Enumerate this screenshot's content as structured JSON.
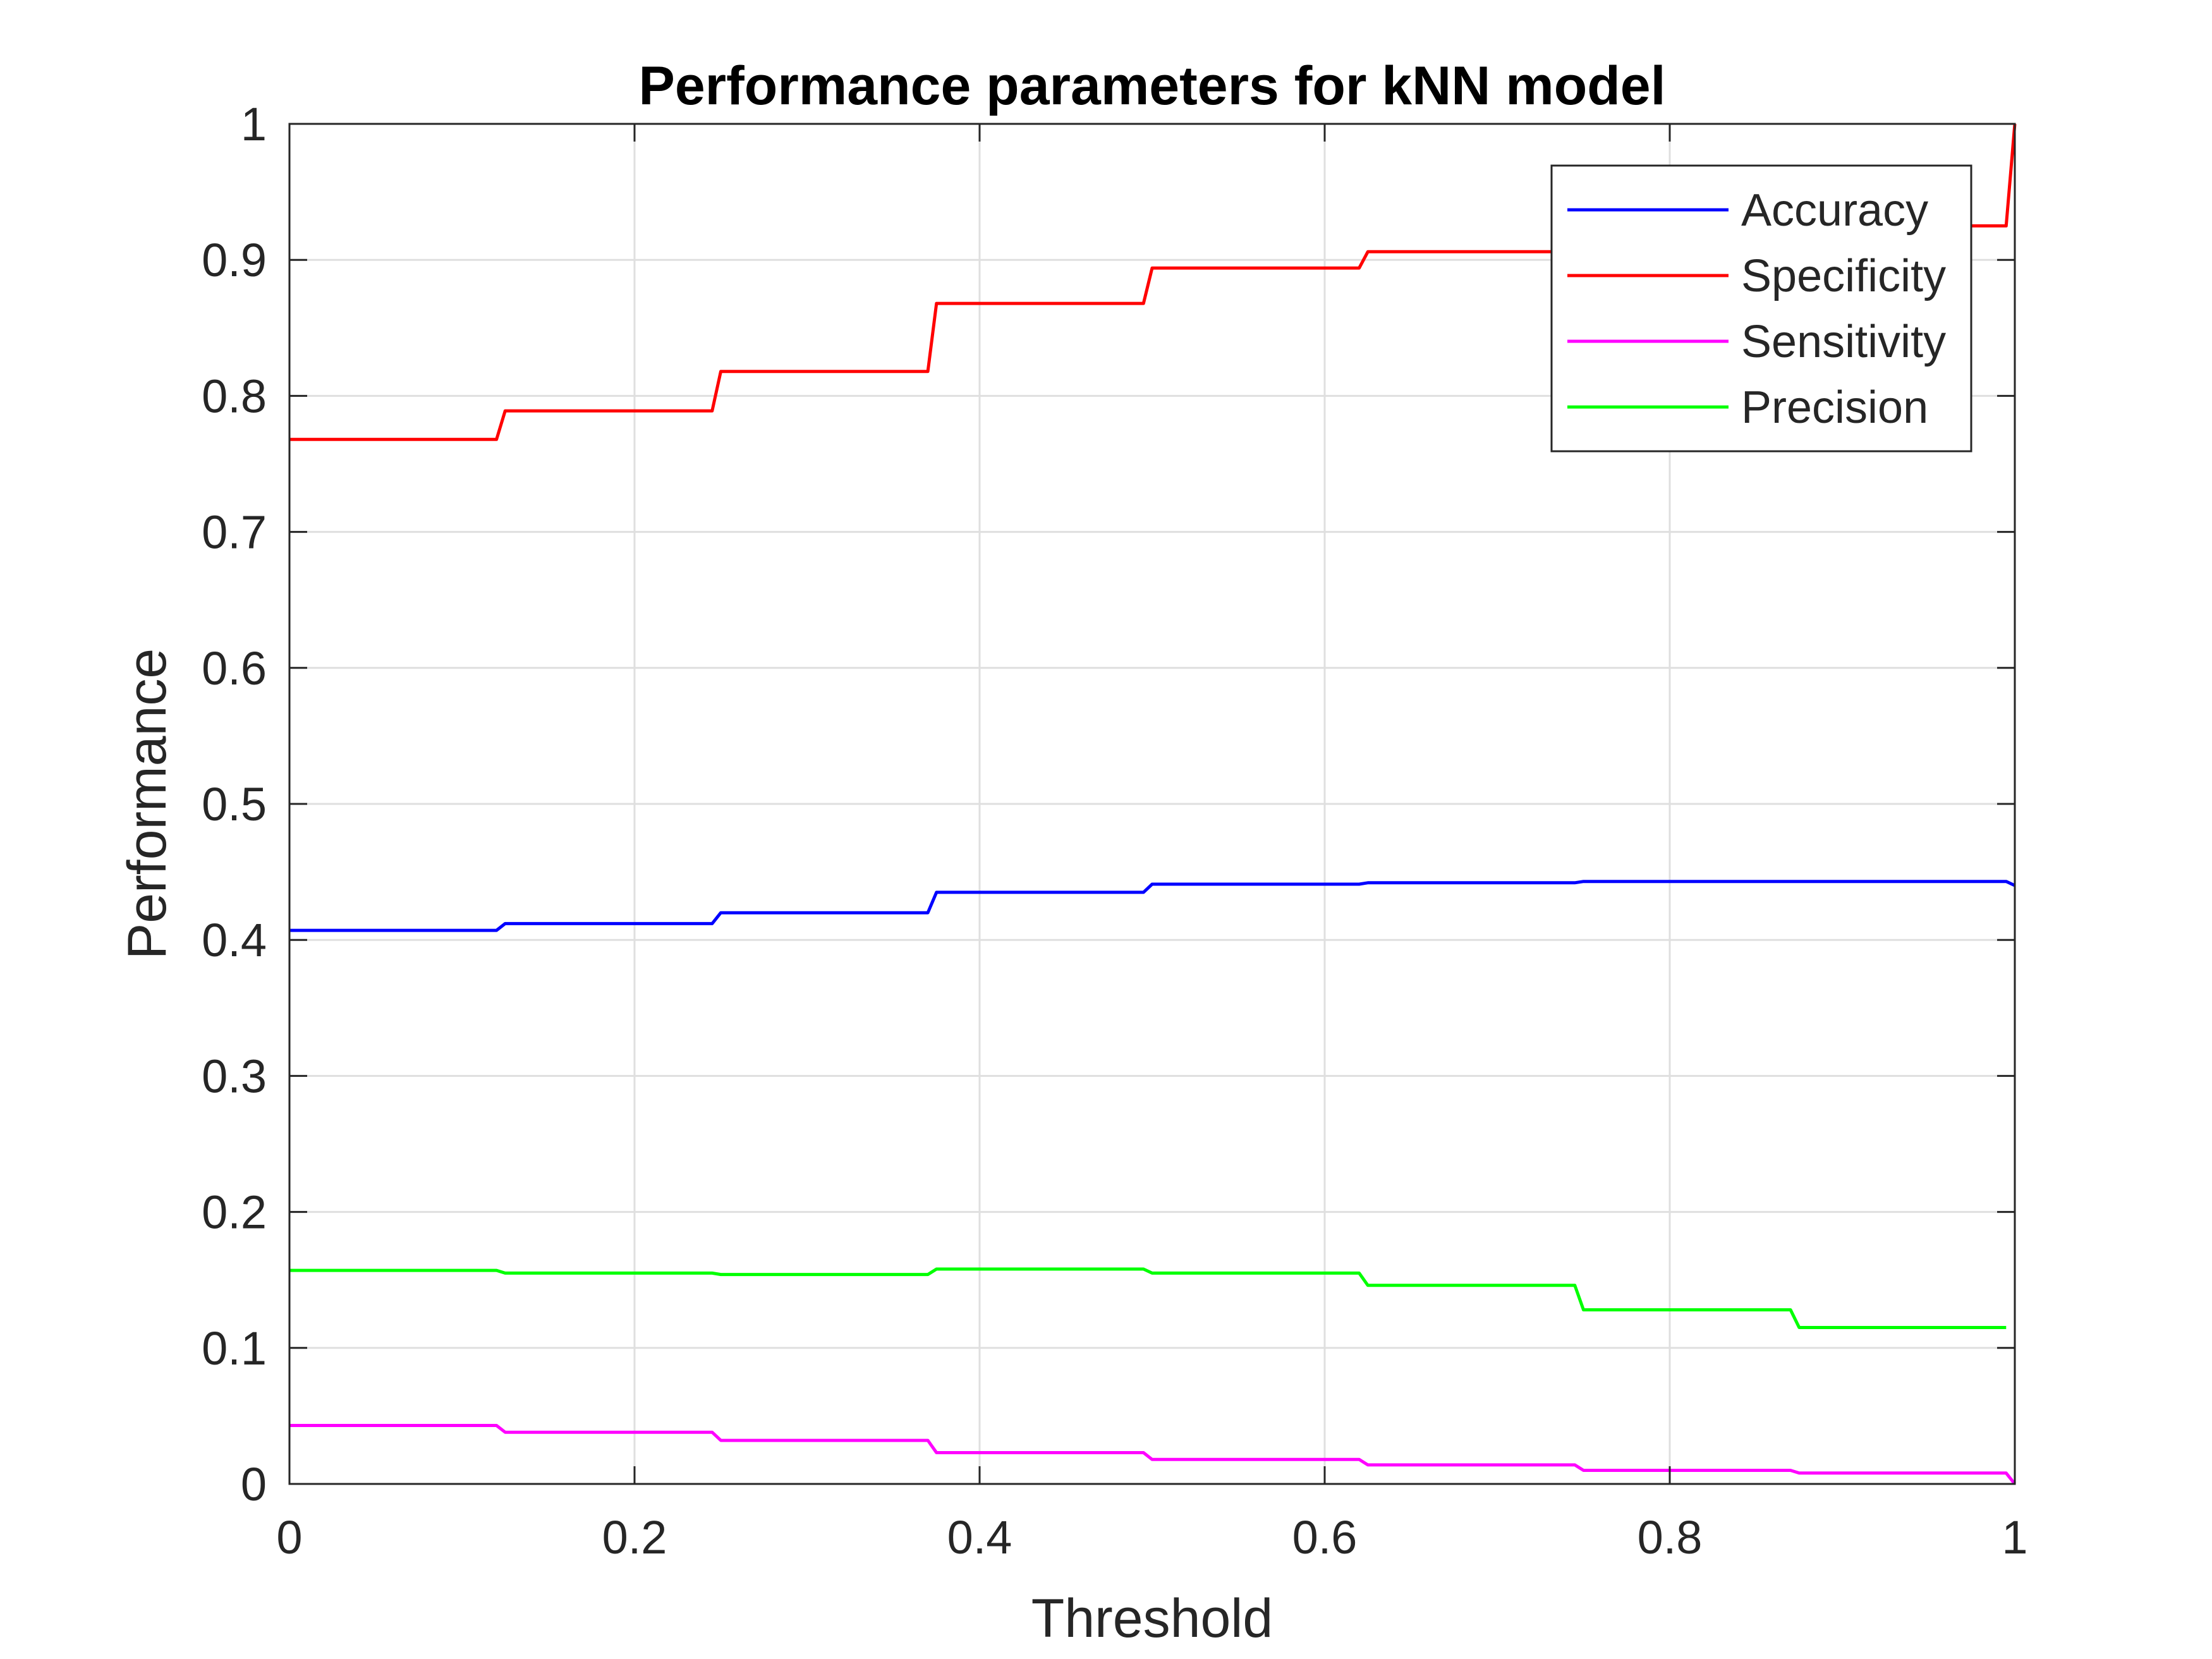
{
  "chart_data": {
    "type": "line",
    "title": "Performance parameters for kNN model",
    "xlabel": "Threshold",
    "ylabel": "Performance",
    "xlim": [
      0,
      1
    ],
    "ylim": [
      0,
      1
    ],
    "grid": true,
    "legend_position": "top-right",
    "x_ticks": [
      "0",
      "0.2",
      "0.4",
      "0.6",
      "0.8",
      "1"
    ],
    "y_ticks": [
      "0",
      "0.1",
      "0.2",
      "0.3",
      "0.4",
      "0.5",
      "0.6",
      "0.7",
      "0.8",
      "0.9",
      "1"
    ],
    "series": [
      {
        "name": "Accuracy",
        "color": "#0000ff",
        "x": [
          0,
          0.12,
          0.125,
          0.245,
          0.25,
          0.37,
          0.375,
          0.495,
          0.5,
          0.62,
          0.625,
          0.745,
          0.75,
          0.87,
          0.875,
          0.995,
          1.0
        ],
        "y": [
          0.407,
          0.407,
          0.412,
          0.412,
          0.42,
          0.42,
          0.435,
          0.435,
          0.441,
          0.441,
          0.442,
          0.442,
          0.443,
          0.443,
          0.443,
          0.443,
          0.44
        ]
      },
      {
        "name": "Specificity",
        "color": "#ff0000",
        "x": [
          0,
          0.12,
          0.125,
          0.245,
          0.25,
          0.37,
          0.375,
          0.495,
          0.5,
          0.62,
          0.625,
          0.745,
          0.75,
          0.87,
          0.875,
          0.995,
          1.0
        ],
        "y": [
          0.768,
          0.768,
          0.789,
          0.789,
          0.818,
          0.818,
          0.868,
          0.868,
          0.894,
          0.894,
          0.906,
          0.906,
          0.915,
          0.915,
          0.925,
          0.925,
          1.0
        ]
      },
      {
        "name": "Sensitivity",
        "color": "#ff00ff",
        "x": [
          0,
          0.12,
          0.125,
          0.245,
          0.25,
          0.37,
          0.375,
          0.495,
          0.5,
          0.62,
          0.625,
          0.745,
          0.75,
          0.87,
          0.875,
          0.995,
          1.0
        ],
        "y": [
          0.043,
          0.043,
          0.038,
          0.038,
          0.032,
          0.032,
          0.023,
          0.023,
          0.018,
          0.018,
          0.014,
          0.014,
          0.01,
          0.01,
          0.008,
          0.008,
          0.0
        ]
      },
      {
        "name": "Precision",
        "color": "#00ff00",
        "x": [
          0,
          0.12,
          0.125,
          0.245,
          0.25,
          0.37,
          0.375,
          0.495,
          0.5,
          0.62,
          0.625,
          0.745,
          0.75,
          0.87,
          0.875,
          0.995
        ],
        "y": [
          0.157,
          0.157,
          0.155,
          0.155,
          0.154,
          0.154,
          0.158,
          0.158,
          0.155,
          0.155,
          0.146,
          0.146,
          0.128,
          0.128,
          0.115,
          0.115
        ]
      }
    ]
  }
}
